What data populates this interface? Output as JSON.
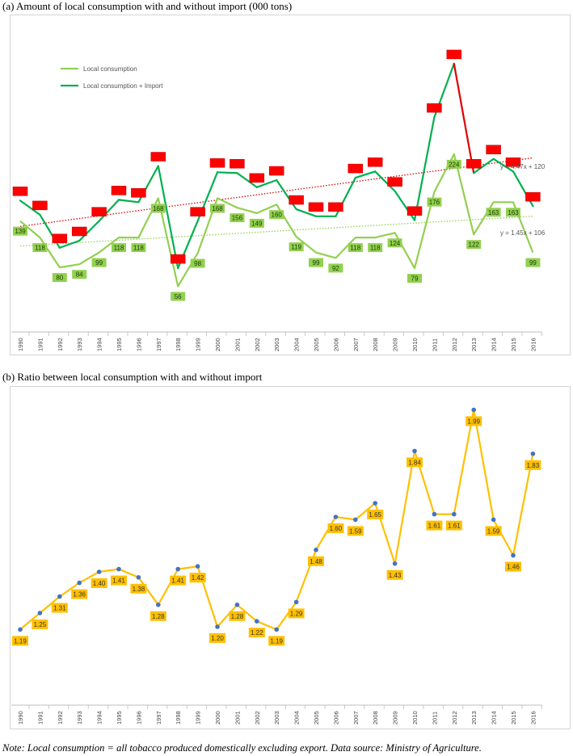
{
  "chart_data": [
    {
      "type": "line",
      "title": "(a) Amount of local consumption with and without import (000 tons)",
      "categories": [
        "1990",
        "1991",
        "1992",
        "1993",
        "1994",
        "1995",
        "1996",
        "1997",
        "1998",
        "1999",
        "2000",
        "2001",
        "2002",
        "2003",
        "2004",
        "2005",
        "2006",
        "2007",
        "2008",
        "2009",
        "2010",
        "2011",
        "2012",
        "2013",
        "2014",
        "2015",
        "2016"
      ],
      "series": [
        {
          "name": "Local consumption",
          "color": "#92d050",
          "values": [
            139,
            118,
            80,
            84,
            99,
            118,
            118,
            168,
            56,
            98,
            168,
            156,
            149,
            160,
            119,
            99,
            92,
            118,
            118,
            124,
            79,
            176,
            224,
            122,
            163,
            163,
            99
          ],
          "labels": [
            "139",
            "118",
            "80",
            "84",
            "99",
            "118",
            "118",
            "168",
            "56",
            "98",
            "168",
            "156",
            "149",
            "160",
            "119",
            "99",
            "92",
            "118",
            "118",
            "124",
            "79",
            "176",
            "224",
            "122",
            "163",
            "163",
            "99"
          ],
          "trendline": "y = 1.45x + 106"
        },
        {
          "name": "Local consumption + Import",
          "color": "#00b050",
          "values": [
            165,
            147,
            105,
            114,
            139,
            166,
            163,
            209,
            79,
            139,
            201,
            200,
            182,
            191,
            154,
            145,
            145,
            194,
            202,
            177,
            140,
            271,
            339,
            200,
            218,
            202,
            158
          ],
          "labels": [
            "",
            "",
            "",
            "",
            "",
            "",
            "",
            "",
            "",
            "",
            "",
            "",
            "",
            "",
            "",
            "",
            "",
            "",
            "",
            "",
            "",
            "",
            "",
            "",
            "",
            "",
            ""
          ],
          "trendline": "y = 4.47x + 120"
        }
      ],
      "ylim": [
        0,
        380
      ]
    },
    {
      "type": "line",
      "title": "(b) Ratio between local consumption with and without import",
      "categories": [
        "1990",
        "1991",
        "1992",
        "1993",
        "1994",
        "1995",
        "1996",
        "1997",
        "1998",
        "1999",
        "2000",
        "2001",
        "2002",
        "2003",
        "2004",
        "2005",
        "2006",
        "2007",
        "2008",
        "2009",
        "2010",
        "2011",
        "2012",
        "2013",
        "2014",
        "2015",
        "2016"
      ],
      "series": [
        {
          "color": "#ffc000",
          "values": [
            1.19,
            1.25,
            1.31,
            1.36,
            1.4,
            1.41,
            1.38,
            1.28,
            1.41,
            1.42,
            1.2,
            1.28,
            1.22,
            1.19,
            1.29,
            1.48,
            1.6,
            1.59,
            1.65,
            1.43,
            1.84,
            1.61,
            1.61,
            1.99,
            1.59,
            1.46,
            1.83
          ],
          "labels": [
            "1.19",
            "1.25",
            "1.31",
            "1.36",
            "1.40",
            "1.41",
            "1.38",
            "1.28",
            "1.41",
            "1.42",
            "1.20",
            "1.28",
            "1.22",
            "1.19",
            "1.29",
            "1.48",
            "1.60",
            "1.59",
            "1.65",
            "1.43",
            "1.84",
            "1.61",
            "1.61",
            "1.99",
            "1.59",
            "1.46",
            "1.83"
          ]
        }
      ],
      "ylim": [
        0.95,
        2.05
      ]
    }
  ],
  "note": "Note: Local consumption = all tobacco produced domestically excluding export. Data source: Ministry of Agriculture."
}
